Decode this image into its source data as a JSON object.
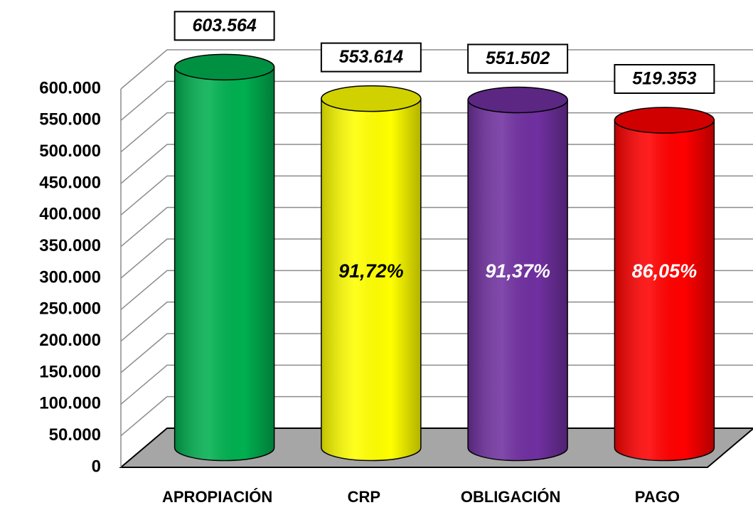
{
  "chart_data": {
    "type": "bar",
    "categories": [
      "APROPIACIÓN",
      "CRP",
      "OBLIGACIÓN",
      "PAGO"
    ],
    "values": [
      603564,
      553614,
      551502,
      519353
    ],
    "value_labels": [
      "603.564",
      "553.614",
      "551.502",
      "519.353"
    ],
    "percent_labels": [
      null,
      "91,72%",
      "91,37%",
      "86,05%"
    ],
    "colors": [
      "#00b050",
      "#ffff00",
      "#7030a0",
      "#ff0000"
    ],
    "percent_label_colors": [
      "#ffffff",
      "#000000",
      "#ffffff",
      "#ffffff"
    ],
    "ylim": [
      0,
      600000
    ],
    "yticks": [
      0,
      {
        "value": 50000,
        "label": "50.000"
      },
      {
        "value": 100000,
        "label": "100.000"
      },
      {
        "value": 150000,
        "label": "150.000"
      },
      {
        "value": 200000,
        "label": "200.000"
      },
      {
        "value": 250000,
        "label": "250.000"
      },
      {
        "value": 300000,
        "label": "300.000"
      },
      {
        "value": 350000,
        "label": "350.000"
      },
      {
        "value": 400000,
        "label": "400.000"
      },
      {
        "value": 450000,
        "label": "450.000"
      },
      {
        "value": 500000,
        "label": "500.000"
      },
      {
        "value": 550000,
        "label": "550.000"
      },
      {
        "value": 600000,
        "label": "600.000"
      }
    ],
    "grid": true
  }
}
